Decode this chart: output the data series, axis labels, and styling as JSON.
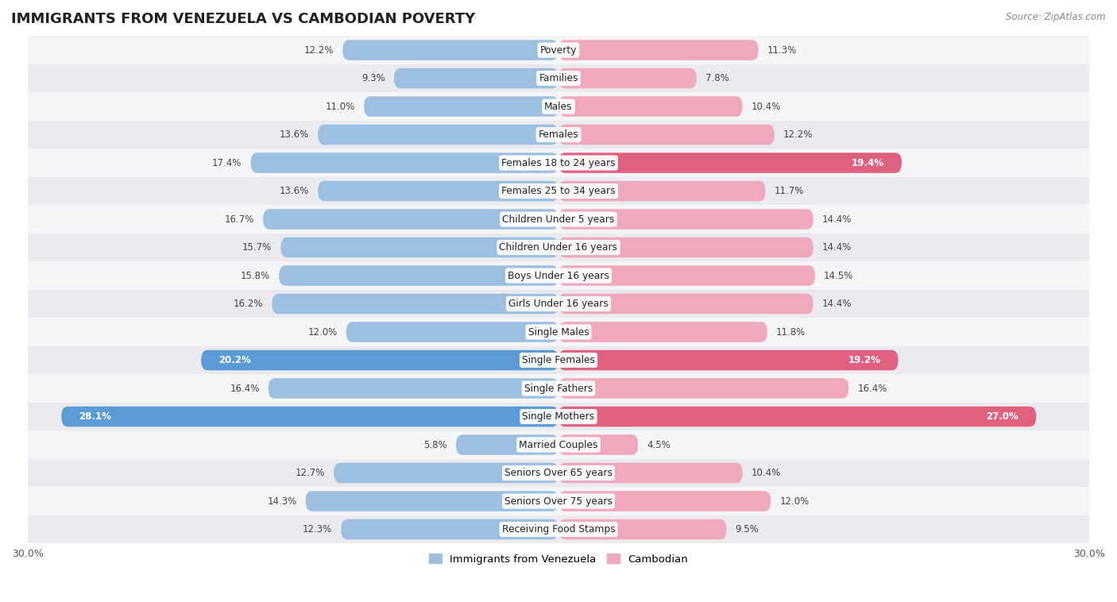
{
  "title": "IMMIGRANTS FROM VENEZUELA VS CAMBODIAN POVERTY",
  "source": "Source: ZipAtlas.com",
  "categories": [
    "Poverty",
    "Families",
    "Males",
    "Females",
    "Females 18 to 24 years",
    "Females 25 to 34 years",
    "Children Under 5 years",
    "Children Under 16 years",
    "Boys Under 16 years",
    "Girls Under 16 years",
    "Single Males",
    "Single Females",
    "Single Fathers",
    "Single Mothers",
    "Married Couples",
    "Seniors Over 65 years",
    "Seniors Over 75 years",
    "Receiving Food Stamps"
  ],
  "venezuela_values": [
    12.2,
    9.3,
    11.0,
    13.6,
    17.4,
    13.6,
    16.7,
    15.7,
    15.8,
    16.2,
    12.0,
    20.2,
    16.4,
    28.1,
    5.8,
    12.7,
    14.3,
    12.3
  ],
  "cambodian_values": [
    11.3,
    7.8,
    10.4,
    12.2,
    19.4,
    11.7,
    14.4,
    14.4,
    14.5,
    14.4,
    11.8,
    19.2,
    16.4,
    27.0,
    4.5,
    10.4,
    12.0,
    9.5
  ],
  "venezuela_color": "#9ec0e0",
  "cambodian_color": "#f0a8bc",
  "venezuela_highlight_indices": [
    11,
    13
  ],
  "cambodian_highlight_indices": [
    4,
    11,
    13
  ],
  "venezuela_highlight_color": "#5b9bd5",
  "cambodian_highlight_color": "#e06080",
  "xlim": 30,
  "row_colors": [
    "#f0f0f0",
    "#e0e0e8"
  ],
  "row_color_light": "#f5f5f5",
  "row_color_dark": "#e8e8ee",
  "legend_venezuela": "Immigrants from Venezuela",
  "legend_cambodian": "Cambodian"
}
